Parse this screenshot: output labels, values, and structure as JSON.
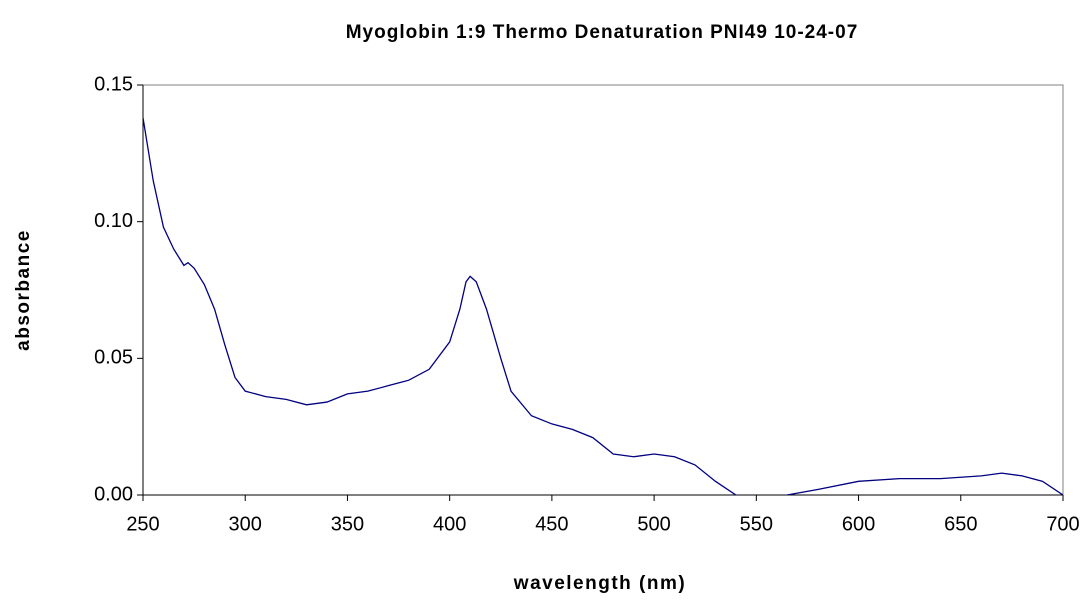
{
  "chart_data": {
    "type": "line",
    "title": "Myoglobin 1:9 Thermo Denaturation PNI49 10-24-07",
    "xlabel": "wavelength (nm)",
    "ylabel": "absorbance",
    "x": [
      250,
      255,
      260,
      265,
      270,
      272,
      275,
      280,
      285,
      290,
      295,
      300,
      310,
      320,
      330,
      340,
      350,
      360,
      370,
      380,
      390,
      400,
      405,
      408,
      410,
      413,
      418,
      425,
      430,
      440,
      450,
      460,
      470,
      480,
      490,
      500,
      510,
      520,
      530,
      540,
      550,
      560,
      565,
      580,
      600,
      620,
      640,
      660,
      670,
      680,
      690,
      700
    ],
    "series": [
      {
        "name": "absorbance",
        "color": "#000080",
        "values": [
          0.138,
          0.115,
          0.098,
          0.09,
          0.084,
          0.085,
          0.083,
          0.077,
          0.068,
          0.055,
          0.043,
          0.038,
          0.036,
          0.035,
          0.033,
          0.034,
          0.037,
          0.038,
          0.04,
          0.042,
          0.046,
          0.056,
          0.068,
          0.078,
          0.08,
          0.078,
          0.068,
          0.05,
          0.038,
          0.029,
          0.026,
          0.024,
          0.021,
          0.015,
          0.014,
          0.015,
          0.014,
          0.011,
          0.005,
          0.0,
          -0.001,
          -0.001,
          0.0,
          0.002,
          0.005,
          0.006,
          0.006,
          0.007,
          0.008,
          0.007,
          0.005,
          0.0
        ]
      }
    ],
    "xlim": [
      250,
      700
    ],
    "xticks": [
      250,
      300,
      350,
      400,
      450,
      500,
      550,
      600,
      650,
      700
    ],
    "ylim": [
      0,
      0.15
    ],
    "yticks": [
      0.15,
      {
        "value": 0.1,
        "label": "0.10"
      },
      0.05,
      {
        "value": 0,
        "label": "0.00"
      }
    ],
    "grid": false
  }
}
